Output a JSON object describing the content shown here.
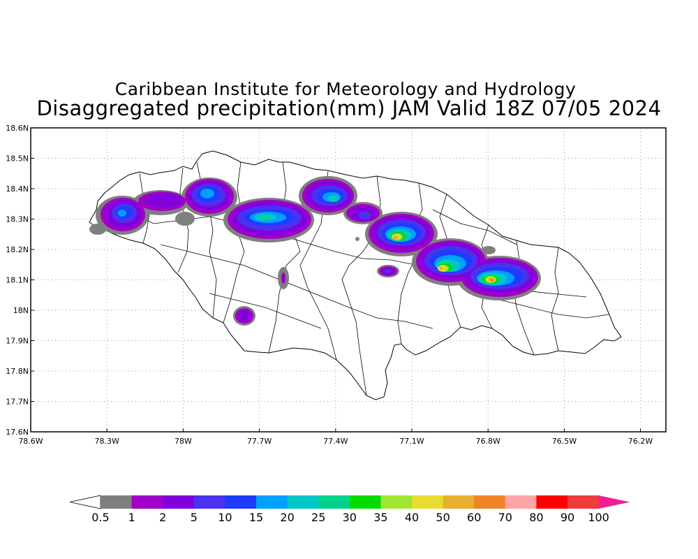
{
  "title": {
    "line1": "Caribbean Institute for Meteorology and Hydrology",
    "line2": "Disaggregated precipitation(mm) JAM Valid 18Z 07/05 2024"
  },
  "axes": {
    "y_ticks": [
      "18.6N",
      "18.5N",
      "18.4N",
      "18.3N",
      "18.2N",
      "18.1N",
      "18N",
      "17.9N",
      "17.8N",
      "17.7N",
      "17.6N"
    ],
    "x_ticks": [
      "78.6W",
      "78.3W",
      "78W",
      "77.7W",
      "77.4W",
      "77.1W",
      "76.8W",
      "76.5W",
      "76.2W"
    ],
    "lon_range": [
      -78.6,
      -76.1
    ],
    "lat_range": [
      17.6,
      18.6
    ],
    "grid": true
  },
  "colorbar": {
    "labels": [
      "0.5",
      "1",
      "2",
      "5",
      "10",
      "15",
      "20",
      "25",
      "30",
      "35",
      "40",
      "50",
      "60",
      "70",
      "80",
      "90",
      "100"
    ],
    "colors": [
      "#7f7f7f",
      "#a000c8",
      "#8200dc",
      "#4b32f0",
      "#1e3cff",
      "#00a0ff",
      "#00c8c8",
      "#00d28c",
      "#00dc00",
      "#a0e632",
      "#e6dc32",
      "#e6af2d",
      "#f08228",
      "#ffa5a5",
      "#ff0000",
      "#f03c3c"
    ],
    "under_color": "#ffffff",
    "over_color": "#f01e96"
  },
  "chart_data": {
    "type": "heatmap",
    "title": "Disaggregated precipitation(mm) JAM Valid 18Z 07/05 2024",
    "region": "Jamaica",
    "units": "mm",
    "rain_cells": [
      {
        "lon": -78.25,
        "lat": 18.31,
        "max_mm": 10
      },
      {
        "lon": -77.92,
        "lat": 18.37,
        "max_mm": 15
      },
      {
        "lon": -77.65,
        "lat": 18.3,
        "max_mm": 25
      },
      {
        "lon": -77.38,
        "lat": 18.37,
        "max_mm": 30
      },
      {
        "lon": -77.1,
        "lat": 18.24,
        "max_mm": 60
      },
      {
        "lon": -76.88,
        "lat": 18.14,
        "max_mm": 50
      },
      {
        "lon": -76.72,
        "lat": 18.1,
        "max_mm": 70
      },
      {
        "lon": -77.58,
        "lat": 18.11,
        "max_mm": 2
      },
      {
        "lon": -77.72,
        "lat": 17.98,
        "max_mm": 2
      },
      {
        "lon": -77.12,
        "lat": 18.13,
        "max_mm": 5
      }
    ]
  }
}
